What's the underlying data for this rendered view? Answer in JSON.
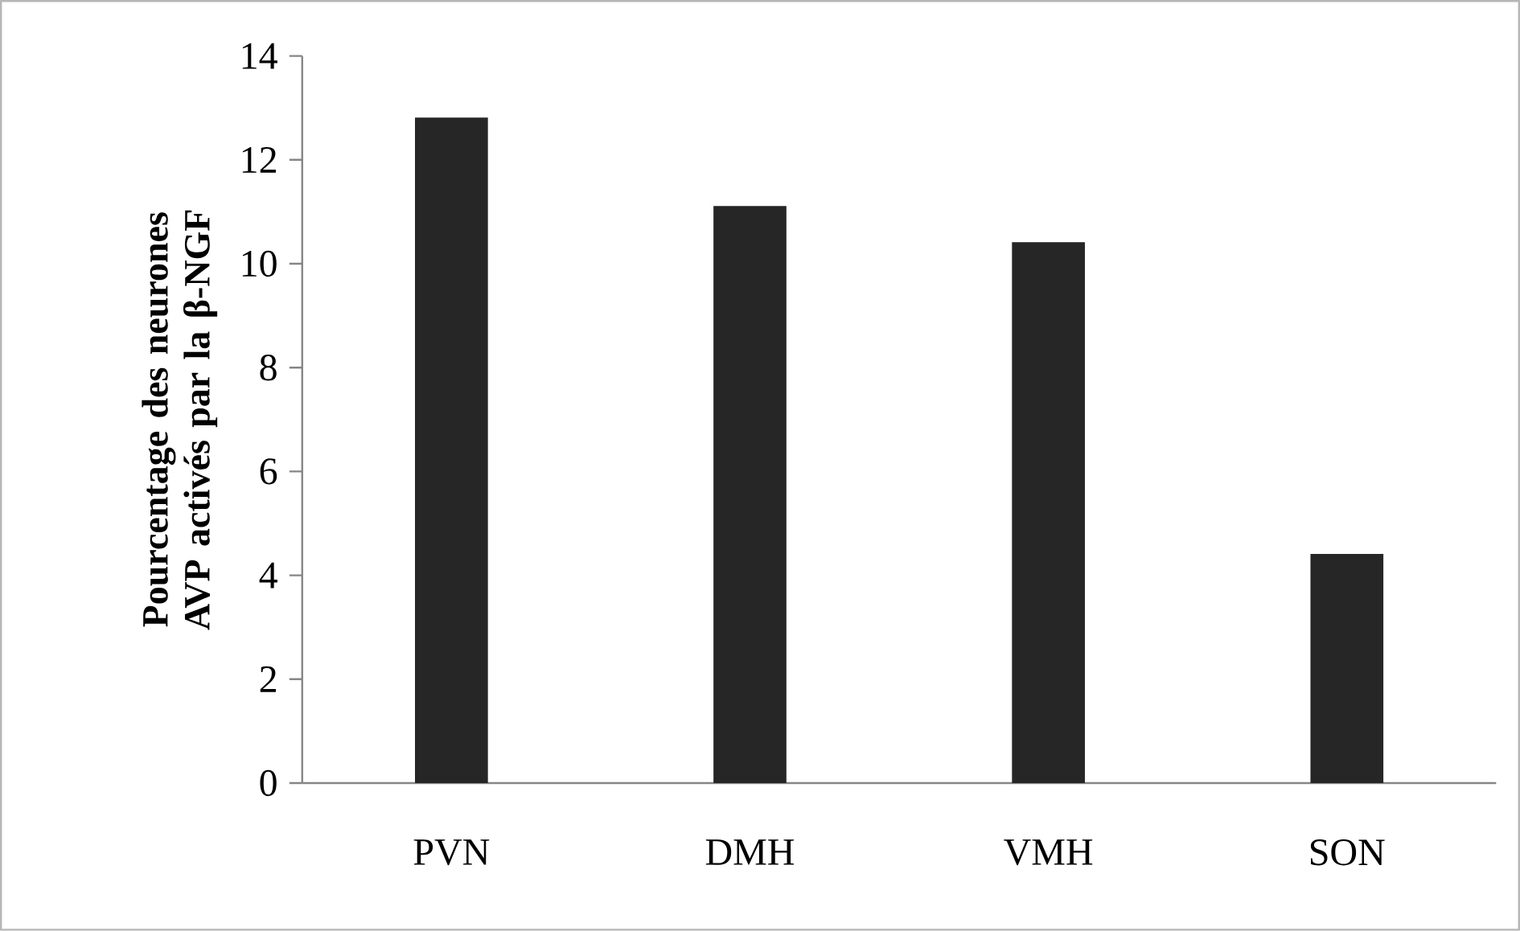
{
  "chart_data": {
    "type": "bar",
    "ylabel": "Pourcentage des neurones AVP activés par la β-NGF",
    "categories": [
      "PVN",
      "DMH",
      "VMH",
      "SON"
    ],
    "values": [
      12.8,
      11.1,
      10.4,
      4.4
    ],
    "color": "#262626",
    "ylim": [
      0,
      14
    ],
    "yticks": [
      0,
      2,
      4,
      6,
      8,
      10,
      12,
      14
    ]
  }
}
